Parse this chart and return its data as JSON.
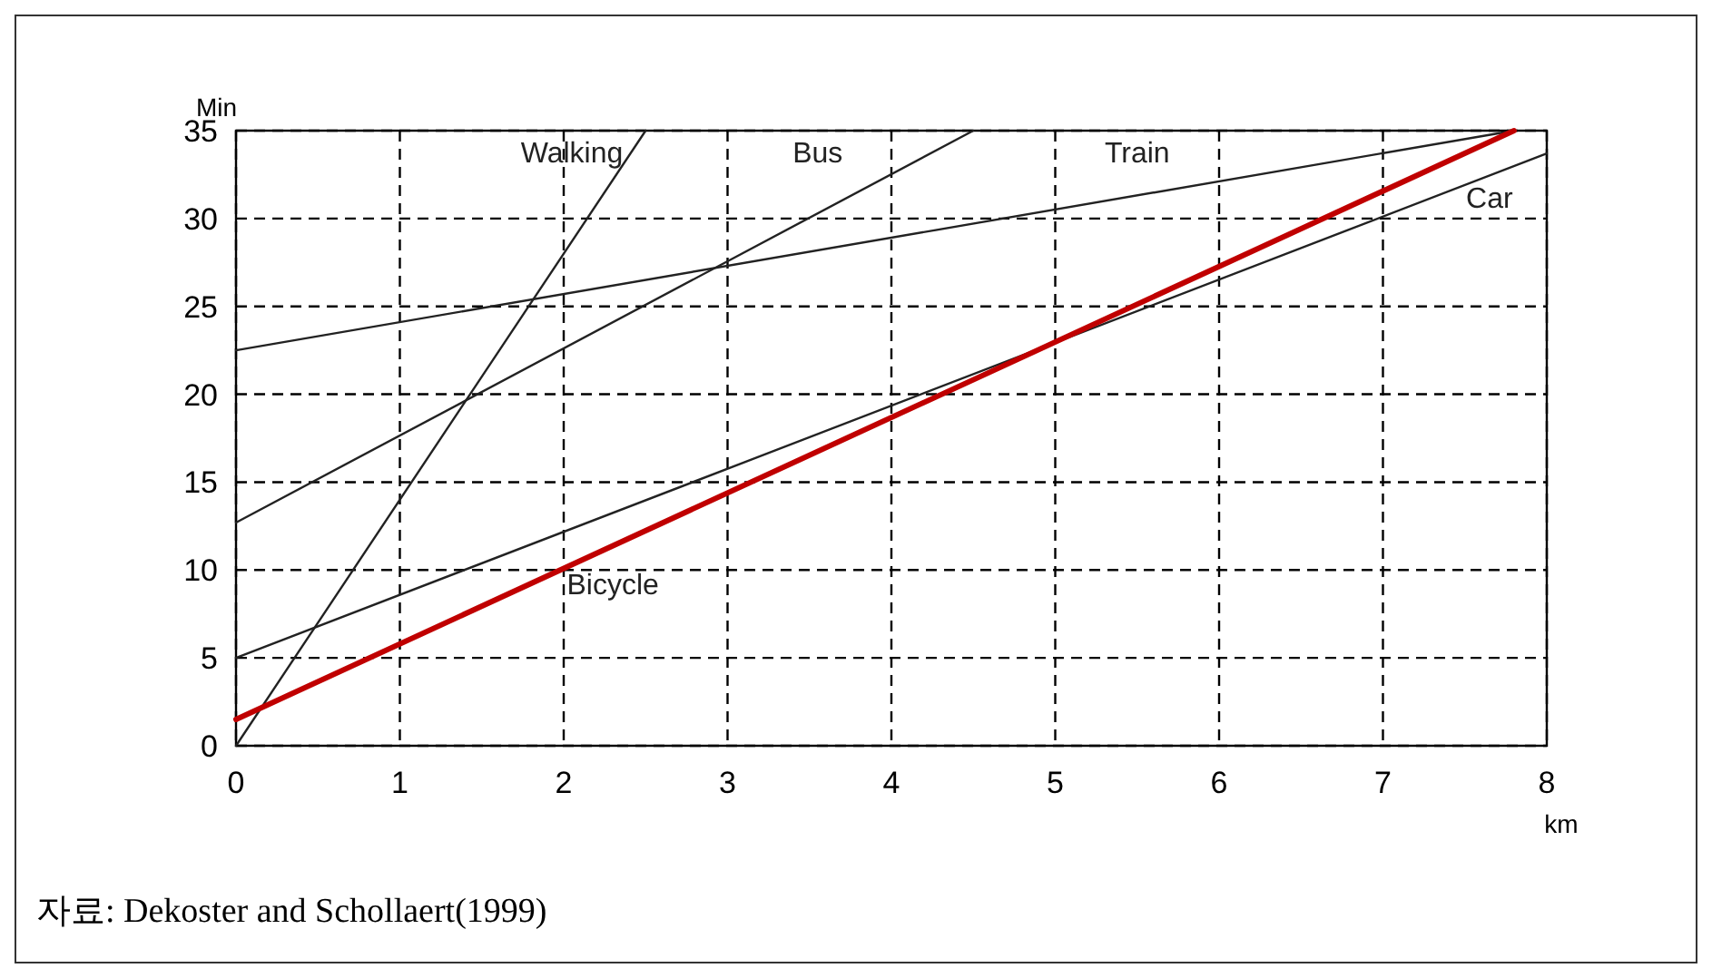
{
  "chart_data": {
    "type": "line",
    "xlabel": "km",
    "ylabel": "Min",
    "xlim": [
      0,
      8
    ],
    "xticks": [
      0,
      1,
      2,
      3,
      4,
      5,
      6,
      7,
      8
    ],
    "ylim": [
      0,
      35
    ],
    "yticks": [
      0,
      5,
      10,
      15,
      20,
      25,
      30,
      35
    ],
    "grid": true,
    "series": [
      {
        "name": "Walking",
        "color": "#222222",
        "x": [
          0,
          2.5
        ],
        "values": [
          0,
          35
        ]
      },
      {
        "name": "Bus",
        "color": "#222222",
        "x": [
          0,
          4.5
        ],
        "values": [
          12.7,
          35
        ]
      },
      {
        "name": "Train",
        "color": "#222222",
        "x": [
          0,
          7.8
        ],
        "values": [
          22.5,
          35
        ]
      },
      {
        "name": "Car",
        "color": "#222222",
        "x": [
          0,
          8
        ],
        "values": [
          5,
          33.7
        ]
      },
      {
        "name": "Bicycle",
        "color": "#c00000",
        "x": [
          0,
          7.8
        ],
        "values": [
          1.5,
          35
        ]
      }
    ],
    "annotations": [
      "자료: Dekoster and Schollaert(1999)"
    ]
  }
}
